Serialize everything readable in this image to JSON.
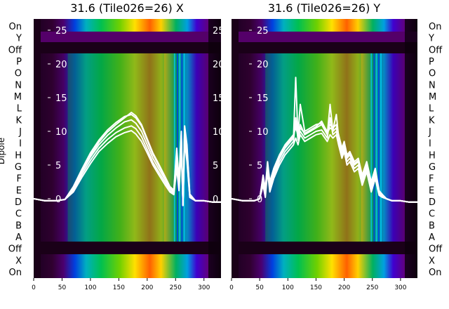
{
  "chart_data": [
    {
      "type": "heatmap",
      "title": "31.6 (Tile026=26) X",
      "ylabel": "Dipole",
      "xlim": [
        0,
        330
      ],
      "xticks": [
        "0",
        "50",
        "100",
        "150",
        "200",
        "250",
        "300"
      ],
      "yticks_overlay": [
        "25",
        "20",
        "15",
        "10",
        "5",
        "0"
      ],
      "dipole_labels": [
        "On",
        "Y",
        "Off",
        "P",
        "O",
        "N",
        "M",
        "L",
        "K",
        "J",
        "I",
        "H",
        "G",
        "F",
        "E",
        "D",
        "C",
        "B",
        "A",
        "Off",
        "X",
        "On"
      ],
      "series": [
        {
          "x": [
            0,
            20,
            40,
            55,
            70,
            85,
            100,
            115,
            130,
            145,
            160,
            172,
            180,
            190,
            200,
            210,
            220,
            232,
            240,
            247,
            252,
            256,
            260,
            263,
            266,
            270,
            275,
            285,
            300,
            315,
            330
          ],
          "y": [
            0,
            -0.3,
            -0.3,
            -0.1,
            1.5,
            4.0,
            6.2,
            8.0,
            9.4,
            10.5,
            11.4,
            11.7,
            11.2,
            10.0,
            8.0,
            6.0,
            4.5,
            2.8,
            1.5,
            1.0,
            6,
            2,
            9,
            -1,
            10,
            7,
            0.5,
            -0.3,
            -0.3,
            -0.5,
            -0.5
          ]
        },
        {
          "x": [
            0,
            20,
            40,
            55,
            70,
            85,
            100,
            115,
            130,
            145,
            160,
            172,
            180,
            190,
            200,
            210,
            220,
            232,
            240,
            247,
            252,
            256,
            260,
            263,
            266,
            270,
            275,
            285,
            300,
            315,
            330
          ],
          "y": [
            0,
            -0.3,
            -0.3,
            -0.1,
            1.2,
            3.6,
            5.7,
            7.5,
            8.8,
            9.8,
            10.5,
            10.8,
            10.4,
            9.2,
            7.3,
            5.4,
            4.0,
            2.4,
            1.2,
            0.8,
            5,
            1.5,
            8,
            -1,
            9,
            6,
            0.3,
            -0.3,
            -0.3,
            -0.5,
            -0.5
          ]
        },
        {
          "x": [
            0,
            20,
            40,
            55,
            70,
            85,
            100,
            115,
            130,
            145,
            160,
            172,
            180,
            190,
            200,
            210,
            220,
            232,
            240,
            247,
            252,
            256,
            260,
            263,
            266,
            270,
            275,
            285,
            300,
            315,
            330
          ],
          "y": [
            0,
            -0.3,
            -0.3,
            -0.1,
            1.8,
            4.4,
            6.8,
            8.7,
            10.2,
            11.3,
            12.2,
            12.5,
            12.0,
            10.8,
            8.7,
            6.6,
            5.0,
            3.1,
            1.7,
            1.2,
            7,
            2.5,
            9.5,
            -1,
            10.5,
            7.5,
            0.6,
            -0.3,
            -0.3,
            -0.5,
            -0.5
          ]
        },
        {
          "x": [
            0,
            20,
            40,
            55,
            70,
            85,
            100,
            115,
            130,
            145,
            160,
            172,
            180,
            190,
            200,
            210,
            220,
            232,
            240,
            247,
            252,
            256,
            260,
            263,
            266,
            270,
            275,
            285,
            300,
            315,
            330
          ],
          "y": [
            0,
            -0.3,
            -0.3,
            -0.1,
            1.0,
            3.2,
            5.2,
            7.0,
            8.2,
            9.2,
            9.8,
            10.1,
            9.6,
            8.5,
            6.8,
            5.0,
            3.6,
            2.0,
            1.0,
            0.6,
            4.5,
            1.2,
            7.5,
            -1,
            8.5,
            5.5,
            0.2,
            -0.3,
            -0.3,
            -0.5,
            -0.5
          ]
        },
        {
          "x": [
            0,
            20,
            40,
            55,
            70,
            85,
            100,
            115,
            130,
            145,
            160,
            172,
            180,
            190,
            200,
            210,
            220,
            232,
            240,
            247,
            252,
            256,
            260,
            263,
            266,
            270,
            275,
            285,
            300,
            315,
            330
          ],
          "y": [
            0,
            -0.3,
            -0.3,
            -0.1,
            1.6,
            4.2,
            6.5,
            8.4,
            9.9,
            11.0,
            12.0,
            12.8,
            12.3,
            11.0,
            8.9,
            6.8,
            5.2,
            3.2,
            1.8,
            1.3,
            7.5,
            2.8,
            10,
            -1,
            10.8,
            8,
            0.7,
            -0.3,
            -0.3,
            -0.5,
            -0.5
          ]
        }
      ]
    },
    {
      "type": "heatmap",
      "title": "31.6 (Tile026=26) Y",
      "ylabel": "",
      "xlim": [
        0,
        330
      ],
      "xticks": [
        "0",
        "50",
        "100",
        "150",
        "200",
        "250",
        "300"
      ],
      "yticks_overlay": [
        "25",
        "20",
        "15",
        "10",
        "5",
        "0"
      ],
      "dipole_labels": [
        "On",
        "Y",
        "Off",
        "P",
        "O",
        "N",
        "M",
        "L",
        "K",
        "J",
        "I",
        "H",
        "G",
        "F",
        "E",
        "D",
        "C",
        "B",
        "A",
        "Off",
        "X",
        "On"
      ],
      "series": [
        {
          "x": [
            0,
            20,
            40,
            50,
            56,
            60,
            64,
            68,
            75,
            85,
            95,
            105,
            110,
            114,
            118,
            122,
            130,
            140,
            150,
            160,
            170,
            175,
            180,
            186,
            190,
            196,
            200,
            205,
            210,
            218,
            225,
            232,
            240,
            248,
            255,
            262,
            268,
            275,
            285,
            300,
            315,
            330
          ],
          "y": [
            0,
            -0.3,
            -0.3,
            0,
            3,
            1,
            5,
            2,
            4,
            6,
            7.5,
            8.5,
            9,
            18,
            9,
            11,
            9.5,
            10,
            10.5,
            11,
            9.5,
            14,
            10,
            10.5,
            9,
            7,
            8,
            6,
            6.5,
            5,
            5.5,
            3,
            5,
            2,
            4,
            1,
            0.5,
            0,
            -0.3,
            -0.3,
            -0.5,
            -0.5
          ]
        },
        {
          "x": [
            0,
            20,
            40,
            50,
            56,
            60,
            64,
            68,
            75,
            85,
            95,
            105,
            110,
            114,
            118,
            122,
            130,
            140,
            150,
            160,
            170,
            175,
            180,
            186,
            190,
            196,
            200,
            205,
            210,
            218,
            225,
            232,
            240,
            248,
            255,
            262,
            268,
            275,
            285,
            300,
            315,
            330
          ],
          "y": [
            0,
            -0.3,
            -0.3,
            0,
            2.5,
            0.5,
            4.5,
            1.5,
            3.5,
            5.5,
            7,
            8,
            8.5,
            12,
            8.7,
            10,
            9,
            9.5,
            10,
            10.2,
            9,
            12,
            9.5,
            10,
            8.5,
            6.5,
            7.5,
            5.5,
            6,
            4.5,
            5,
            2.5,
            4.5,
            1.5,
            3.5,
            0.8,
            0.3,
            0,
            -0.3,
            -0.3,
            -0.5,
            -0.5
          ]
        },
        {
          "x": [
            0,
            20,
            40,
            50,
            56,
            60,
            64,
            68,
            75,
            85,
            95,
            105,
            110,
            114,
            118,
            122,
            130,
            140,
            150,
            160,
            170,
            175,
            180,
            186,
            190,
            196,
            200,
            205,
            210,
            218,
            225,
            232,
            240,
            248,
            255,
            262,
            268,
            275,
            285,
            300,
            315,
            330
          ],
          "y": [
            0,
            -0.3,
            -0.3,
            0,
            3.5,
            1.5,
            5.5,
            2.5,
            4.5,
            6.5,
            8,
            9,
            9.5,
            10.5,
            9.5,
            14,
            10,
            10.5,
            11,
            11.2,
            10,
            11,
            10.5,
            11,
            9.5,
            7.5,
            8.5,
            6.5,
            7,
            5.5,
            6,
            3.5,
            5.5,
            2.5,
            4.5,
            1.2,
            0.6,
            0,
            -0.3,
            -0.3,
            -0.5,
            -0.5
          ]
        },
        {
          "x": [
            0,
            20,
            40,
            50,
            56,
            60,
            64,
            68,
            75,
            85,
            95,
            105,
            110,
            114,
            118,
            122,
            130,
            140,
            150,
            160,
            170,
            175,
            180,
            186,
            190,
            196,
            200,
            205,
            210,
            218,
            225,
            232,
            240,
            248,
            255,
            262,
            268,
            275,
            285,
            300,
            315,
            330
          ],
          "y": [
            0,
            -0.3,
            -0.3,
            0,
            2,
            0.2,
            4,
            1,
            3,
            5,
            6.5,
            7.5,
            8,
            9,
            8,
            9.5,
            8.5,
            9,
            9.5,
            9.7,
            8.5,
            9.5,
            9,
            9.5,
            8,
            6,
            7,
            5,
            5.5,
            4,
            4.5,
            2,
            4,
            1,
            3,
            0.5,
            0.2,
            0,
            -0.3,
            -0.3,
            -0.5,
            -0.5
          ]
        },
        {
          "x": [
            0,
            20,
            40,
            50,
            56,
            60,
            64,
            68,
            75,
            85,
            95,
            105,
            110,
            114,
            118,
            122,
            130,
            140,
            150,
            160,
            170,
            175,
            180,
            186,
            190,
            196,
            200,
            205,
            210,
            218,
            225,
            232,
            240,
            248,
            255,
            262,
            268,
            275,
            285,
            300,
            315,
            330
          ],
          "y": [
            0,
            -0.3,
            -0.3,
            0,
            3.2,
            1.2,
            5.2,
            2.2,
            4.2,
            6.2,
            7.8,
            8.8,
            9.3,
            11,
            9.2,
            10.5,
            9.7,
            10.2,
            10.7,
            11.5,
            9.8,
            10.5,
            10.2,
            12.5,
            9.2,
            7.2,
            8.2,
            6.2,
            6.7,
            5.2,
            5.7,
            3.2,
            5.2,
            2.2,
            4.2,
            1,
            0.5,
            0,
            -0.3,
            -0.3,
            -0.5,
            -0.5
          ]
        }
      ]
    }
  ]
}
